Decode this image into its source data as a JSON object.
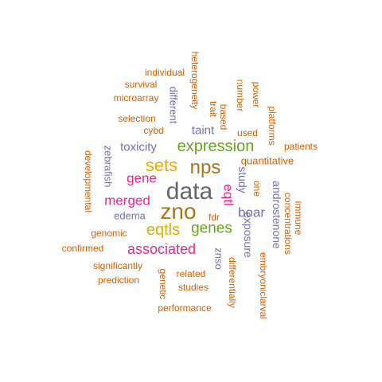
{
  "palette": {
    "orange": "#d95f02",
    "purple": "#7570b3",
    "magenta": "#e7298a",
    "green": "#66a61e",
    "gold": "#e6ab02",
    "brown": "#a6761d",
    "gray": "#666666"
  },
  "words": [
    {
      "text": "data",
      "weight": 10,
      "color": "#666666",
      "vertical": false
    },
    {
      "text": "zno",
      "weight": 9,
      "color": "#a6761d",
      "vertical": false
    },
    {
      "text": "nps",
      "weight": 8,
      "color": "#a6761d",
      "vertical": false
    },
    {
      "text": "sets",
      "weight": 8,
      "color": "#e6ab02",
      "vertical": false
    },
    {
      "text": "expression",
      "weight": 7,
      "color": "#66a61e",
      "vertical": false
    },
    {
      "text": "eqtls",
      "weight": 7,
      "color": "#e6ab02",
      "vertical": false
    },
    {
      "text": "genes",
      "weight": 7,
      "color": "#66a61e",
      "vertical": false
    },
    {
      "text": "associated",
      "weight": 6,
      "color": "#e7298a",
      "vertical": false
    },
    {
      "text": "gene",
      "weight": 5,
      "color": "#e7298a",
      "vertical": false
    },
    {
      "text": "merged",
      "weight": 5,
      "color": "#e7298a",
      "vertical": false
    },
    {
      "text": "toxicity",
      "weight": 4,
      "color": "#7570b3",
      "vertical": false
    },
    {
      "text": "boar",
      "weight": 5,
      "color": "#7570b3",
      "vertical": false
    },
    {
      "text": "taint",
      "weight": 4,
      "color": "#7570b3",
      "vertical": false
    },
    {
      "text": "eqtl",
      "weight": 5,
      "color": "#e7298a",
      "vertical": true
    },
    {
      "text": "study",
      "weight": 4,
      "color": "#7570b3",
      "vertical": true
    },
    {
      "text": "exposure",
      "weight": 4,
      "color": "#7570b3",
      "vertical": true
    },
    {
      "text": "androstenone",
      "weight": 4,
      "color": "#7570b3",
      "vertical": true
    },
    {
      "text": "edema",
      "weight": 3,
      "color": "#7570b3",
      "vertical": false
    },
    {
      "text": "zebrafish",
      "weight": 3,
      "color": "#7570b3",
      "vertical": true
    },
    {
      "text": "different",
      "weight": 3,
      "color": "#7570b3",
      "vertical": true
    },
    {
      "text": "znso",
      "weight": 3,
      "color": "#7570b3",
      "vertical": true
    },
    {
      "text": "quantitative",
      "weight": 3,
      "color": "#d95f02",
      "vertical": false
    },
    {
      "text": "fdr",
      "weight": 2,
      "color": "#d95f02",
      "vertical": false
    },
    {
      "text": "one",
      "weight": 2,
      "color": "#d95f02",
      "vertical": true
    },
    {
      "text": "used",
      "weight": 2,
      "color": "#d95f02",
      "vertical": false
    },
    {
      "text": "cybd",
      "weight": 2,
      "color": "#d95f02",
      "vertical": false
    },
    {
      "text": "selection",
      "weight": 2,
      "color": "#d95f02",
      "vertical": false
    },
    {
      "text": "microarray",
      "weight": 2,
      "color": "#d95f02",
      "vertical": false
    },
    {
      "text": "survival",
      "weight": 2,
      "color": "#d95f02",
      "vertical": false
    },
    {
      "text": "individual",
      "weight": 2,
      "color": "#d95f02",
      "vertical": false
    },
    {
      "text": "heterogeneity",
      "weight": 2,
      "color": "#d95f02",
      "vertical": true
    },
    {
      "text": "trait",
      "weight": 2,
      "color": "#d95f02",
      "vertical": true
    },
    {
      "text": "based",
      "weight": 2,
      "color": "#d95f02",
      "vertical": true
    },
    {
      "text": "number",
      "weight": 2,
      "color": "#d95f02",
      "vertical": true
    },
    {
      "text": "power",
      "weight": 2,
      "color": "#d95f02",
      "vertical": true
    },
    {
      "text": "platforms",
      "weight": 2,
      "color": "#d95f02",
      "vertical": true
    },
    {
      "text": "patients",
      "weight": 2,
      "color": "#d95f02",
      "vertical": false
    },
    {
      "text": "developmental",
      "weight": 2,
      "color": "#d95f02",
      "vertical": true
    },
    {
      "text": "genomic",
      "weight": 2,
      "color": "#d95f02",
      "vertical": false
    },
    {
      "text": "confirmed",
      "weight": 2,
      "color": "#d95f02",
      "vertical": false
    },
    {
      "text": "significantly",
      "weight": 2,
      "color": "#d95f02",
      "vertical": false
    },
    {
      "text": "prediction",
      "weight": 2,
      "color": "#d95f02",
      "vertical": false
    },
    {
      "text": "related",
      "weight": 2,
      "color": "#d95f02",
      "vertical": false
    },
    {
      "text": "studies",
      "weight": 2,
      "color": "#d95f02",
      "vertical": false
    },
    {
      "text": "genetic",
      "weight": 2,
      "color": "#d95f02",
      "vertical": true
    },
    {
      "text": "performance",
      "weight": 2,
      "color": "#d95f02",
      "vertical": false
    },
    {
      "text": "differentially",
      "weight": 2,
      "color": "#d95f02",
      "vertical": true
    },
    {
      "text": "embryoniclarval",
      "weight": 2,
      "color": "#d95f02",
      "vertical": true
    },
    {
      "text": "concentrations",
      "weight": 2,
      "color": "#d95f02",
      "vertical": true
    },
    {
      "text": "immune",
      "weight": 2,
      "color": "#d95f02",
      "vertical": true
    }
  ]
}
